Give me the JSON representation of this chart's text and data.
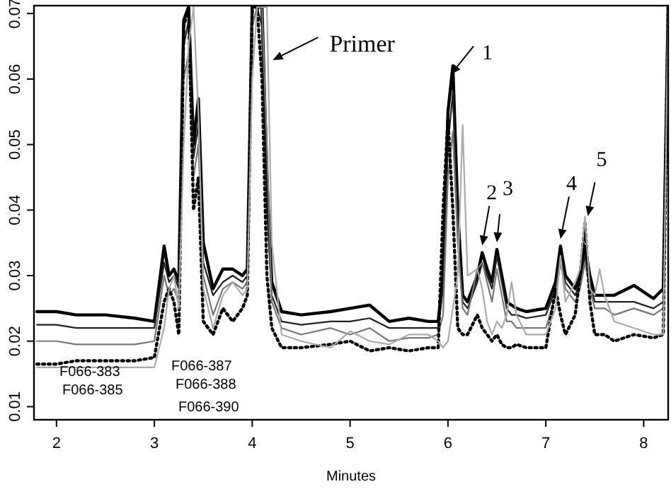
{
  "chart_data": {
    "type": "line",
    "xlabel": "Minutes",
    "xlim": [
      1.77,
      8.25
    ],
    "ylim": [
      0.008,
      0.0712
    ],
    "xticks": [
      2,
      3,
      4,
      5,
      6,
      7,
      8
    ],
    "yticks": [
      {
        "value": 0.01,
        "label": "0.01"
      },
      {
        "value": 0.02,
        "label": "0.02"
      },
      {
        "value": 0.03,
        "label": "0.03"
      },
      {
        "value": 0.04,
        "label": "0.04"
      },
      {
        "value": 0.05,
        "label": "0.05"
      },
      {
        "value": 0.06,
        "label": "0.06"
      },
      {
        "value": 0.07,
        "label": "0.07"
      }
    ],
    "grid": false,
    "x": [
      1.8,
      2.0,
      2.2,
      2.5,
      2.8,
      3.0,
      3.1,
      3.15,
      3.2,
      3.25,
      3.3,
      3.35,
      3.4,
      3.45,
      3.5,
      3.6,
      3.7,
      3.8,
      3.9,
      3.95,
      4.0,
      4.05,
      4.1,
      4.15,
      4.2,
      4.3,
      4.5,
      4.8,
      5.0,
      5.2,
      5.4,
      5.6,
      5.8,
      5.9,
      5.95,
      6.0,
      6.05,
      6.1,
      6.15,
      6.2,
      6.3,
      6.35,
      6.4,
      6.45,
      6.5,
      6.55,
      6.6,
      6.65,
      6.7,
      6.8,
      7.0,
      7.1,
      7.15,
      7.2,
      7.3,
      7.35,
      7.4,
      7.45,
      7.5,
      7.55,
      7.6,
      7.7,
      7.9,
      8.1,
      8.2,
      8.25
    ],
    "series": [
      {
        "color": "#000000",
        "line_style": "solid",
        "values": [
          0.0245,
          0.0245,
          0.024,
          0.024,
          0.0235,
          0.023,
          0.0345,
          0.03,
          0.031,
          0.029,
          0.069,
          0.071,
          0.05,
          0.057,
          0.035,
          0.028,
          0.031,
          0.031,
          0.03,
          0.031,
          0.071,
          0.071,
          0.071,
          0.045,
          0.029,
          0.0245,
          0.024,
          0.0245,
          0.025,
          0.0255,
          0.023,
          0.0235,
          0.023,
          0.023,
          0.03,
          0.055,
          0.062,
          0.04,
          0.027,
          0.026,
          0.03,
          0.0335,
          0.031,
          0.029,
          0.034,
          0.03,
          0.026,
          0.0255,
          0.025,
          0.0245,
          0.025,
          0.029,
          0.0345,
          0.03,
          0.028,
          0.03,
          0.0345,
          0.03,
          0.027,
          0.027,
          0.027,
          0.027,
          0.0285,
          0.0265,
          0.028,
          0.071
        ]
      },
      {
        "color": "#222222",
        "line_style": "solid",
        "values": [
          0.0225,
          0.0225,
          0.022,
          0.022,
          0.022,
          0.022,
          0.032,
          0.029,
          0.03,
          0.028,
          0.065,
          0.069,
          0.048,
          0.053,
          0.032,
          0.027,
          0.029,
          0.03,
          0.029,
          0.03,
          0.071,
          0.071,
          0.068,
          0.04,
          0.027,
          0.023,
          0.0225,
          0.023,
          0.023,
          0.0235,
          0.022,
          0.022,
          0.022,
          0.022,
          0.028,
          0.05,
          0.058,
          0.037,
          0.026,
          0.025,
          0.029,
          0.032,
          0.03,
          0.028,
          0.033,
          0.029,
          0.025,
          0.024,
          0.024,
          0.0235,
          0.024,
          0.028,
          0.033,
          0.029,
          0.027,
          0.029,
          0.033,
          0.029,
          0.026,
          0.026,
          0.026,
          0.026,
          0.026,
          0.025,
          0.026,
          0.071
        ]
      },
      {
        "color": "#777777",
        "line_style": "solid",
        "values": [
          0.02,
          0.02,
          0.0195,
          0.0195,
          0.0195,
          0.02,
          0.03,
          0.027,
          0.028,
          0.026,
          0.06,
          0.064,
          0.045,
          0.05,
          0.03,
          0.024,
          0.028,
          0.029,
          0.028,
          0.029,
          0.068,
          0.071,
          0.071,
          0.05,
          0.026,
          0.022,
          0.021,
          0.022,
          0.021,
          0.022,
          0.02,
          0.0205,
          0.0205,
          0.021,
          0.024,
          0.045,
          0.052,
          0.035,
          0.025,
          0.024,
          0.031,
          0.032,
          0.029,
          0.026,
          0.031,
          0.027,
          0.023,
          0.023,
          0.022,
          0.022,
          0.022,
          0.027,
          0.032,
          0.028,
          0.026,
          0.028,
          0.032,
          0.028,
          0.025,
          0.025,
          0.025,
          0.024,
          0.025,
          0.024,
          0.025,
          0.071
        ]
      },
      {
        "color": "#000000",
        "line_style": "dotted",
        "values": [
          0.0165,
          0.0165,
          0.017,
          0.017,
          0.017,
          0.0175,
          0.026,
          0.028,
          0.026,
          0.021,
          0.068,
          0.071,
          0.04,
          0.045,
          0.023,
          0.021,
          0.025,
          0.023,
          0.025,
          0.027,
          0.071,
          0.071,
          0.06,
          0.03,
          0.022,
          0.019,
          0.019,
          0.0195,
          0.02,
          0.0185,
          0.019,
          0.0185,
          0.019,
          0.019,
          0.04,
          0.054,
          0.04,
          0.022,
          0.021,
          0.021,
          0.024,
          0.022,
          0.021,
          0.02,
          0.021,
          0.0195,
          0.019,
          0.019,
          0.0195,
          0.019,
          0.019,
          0.028,
          0.024,
          0.021,
          0.024,
          0.03,
          0.038,
          0.026,
          0.021,
          0.021,
          0.021,
          0.02,
          0.021,
          0.0205,
          0.021,
          0.071
        ]
      },
      {
        "color": "#aaaaaa",
        "line_style": "solid",
        "values": [
          0.016,
          0.016,
          0.016,
          0.016,
          0.016,
          0.016,
          0.022,
          0.028,
          0.03,
          0.025,
          0.05,
          0.065,
          0.071,
          0.055,
          0.028,
          0.022,
          0.027,
          0.029,
          0.027,
          0.028,
          0.06,
          0.071,
          0.071,
          0.071,
          0.035,
          0.021,
          0.02,
          0.019,
          0.0215,
          0.02,
          0.0195,
          0.021,
          0.021,
          0.02,
          0.019,
          0.02,
          0.025,
          0.03,
          0.053,
          0.03,
          0.031,
          0.028,
          0.023,
          0.021,
          0.023,
          0.022,
          0.024,
          0.029,
          0.024,
          0.021,
          0.021,
          0.025,
          0.033,
          0.026,
          0.029,
          0.031,
          0.039,
          0.028,
          0.027,
          0.031,
          0.027,
          0.023,
          0.022,
          0.021,
          0.021,
          0.071
        ]
      }
    ],
    "annotations": [
      {
        "text": "Primer",
        "x": 4.21,
        "y": 0.0629
      },
      {
        "text": "1",
        "x": 6.03,
        "y": 0.0607
      },
      {
        "text": "2",
        "x": 6.35,
        "y": 0.0335
      },
      {
        "text": "3",
        "x": 6.5,
        "y": 0.034
      },
      {
        "text": "4",
        "x": 7.15,
        "y": 0.0345
      },
      {
        "text": "5",
        "x": 7.4,
        "y": 0.038
      },
      "F066-383",
      "F066-385",
      "F066-387",
      "F066-388",
      "F066-390"
    ]
  }
}
